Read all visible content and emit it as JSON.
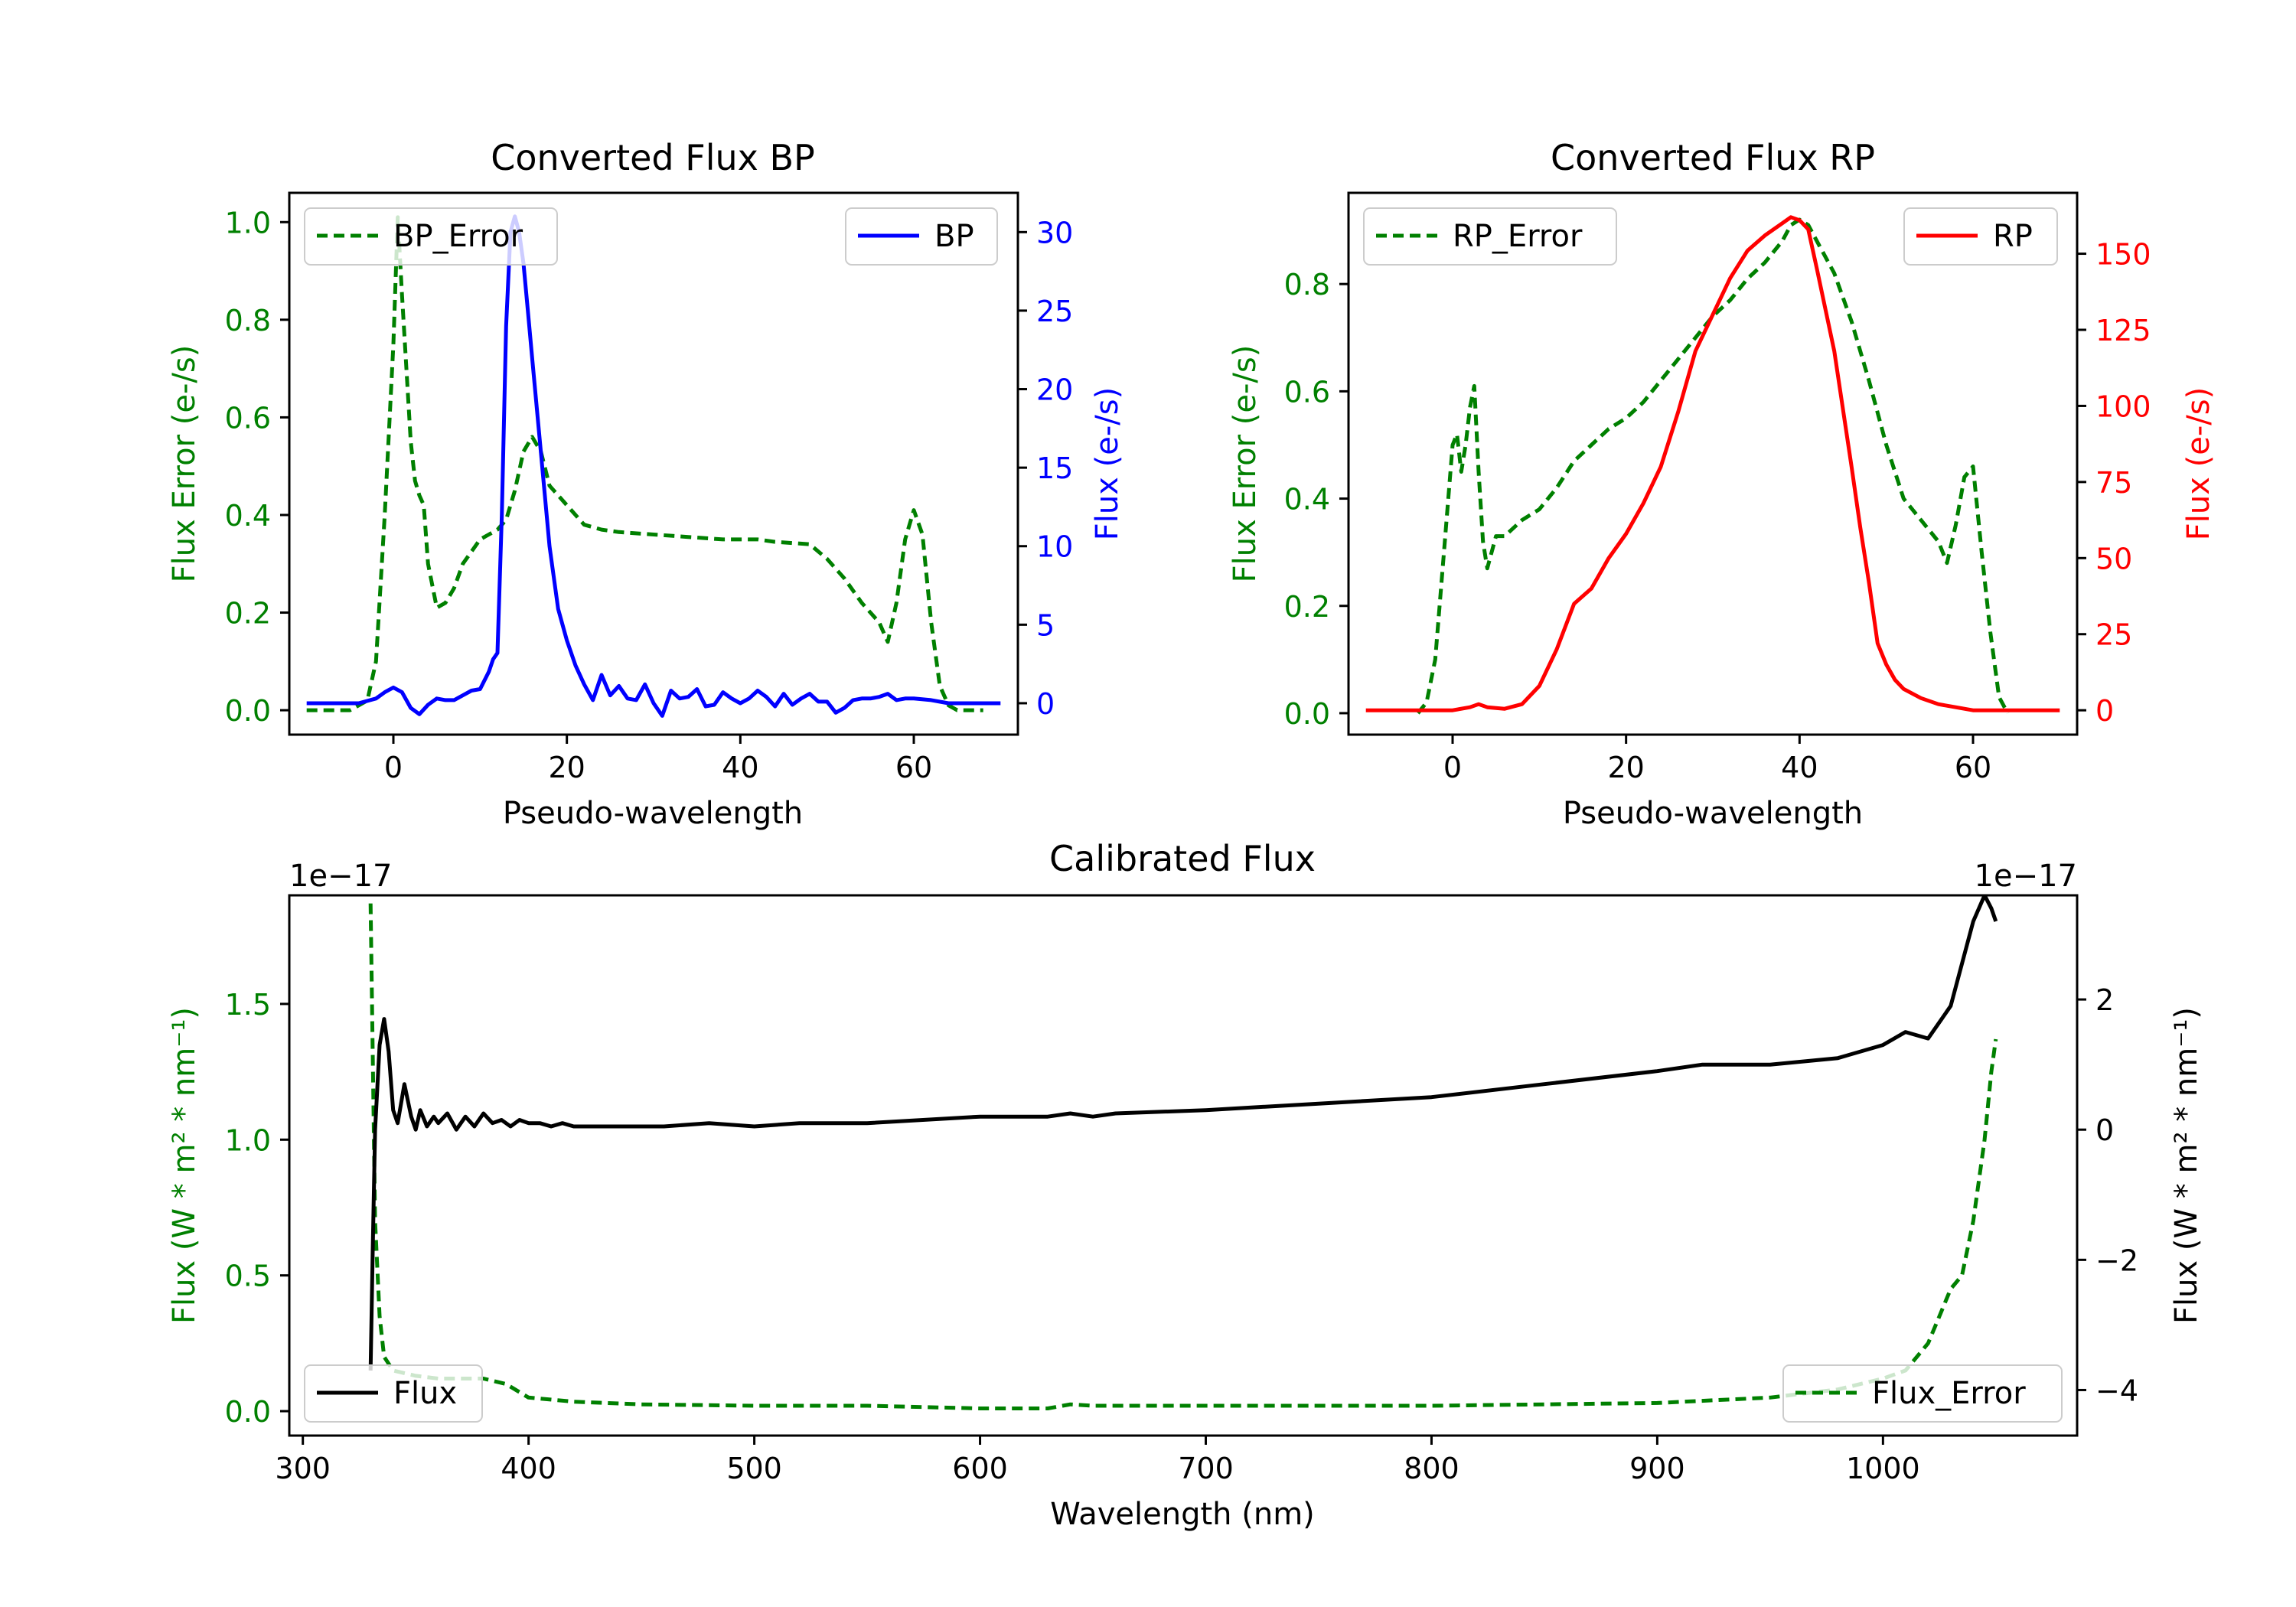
{
  "chart_data": [
    {
      "id": "bp",
      "type": "line",
      "title": "Converted Flux BP",
      "xlabel": "Pseudo-wavelength",
      "ylabel_left": "Flux Error (e-/s)",
      "ylabel_right": "Flux (e-/s)",
      "xlim": [
        -12,
        72
      ],
      "ylim_left": [
        -0.05,
        1.06
      ],
      "ylim_right": [
        -2,
        32.5
      ],
      "xticks": [
        0,
        20,
        40,
        60
      ],
      "yticks_left": [
        0.0,
        0.2,
        0.4,
        0.6,
        0.8,
        1.0
      ],
      "yticks_right": [
        0,
        5,
        10,
        15,
        20,
        25,
        30
      ],
      "colors": {
        "left": "#008000",
        "right": "#0000ff"
      },
      "series": [
        {
          "name": "BP_Error",
          "axis": "left",
          "style": "dashed",
          "color": "#008000",
          "x": [
            -10,
            -5,
            -3,
            -2,
            -1,
            0,
            0.5,
            1,
            2,
            2.5,
            3,
            3.5,
            4,
            5,
            6,
            7,
            8,
            10,
            12,
            13,
            14,
            15,
            16,
            17,
            18,
            20,
            22,
            24,
            26,
            30,
            34,
            38,
            42,
            44,
            48,
            50,
            52,
            54,
            55,
            56,
            57,
            58,
            59,
            60,
            61,
            62,
            63,
            64,
            65,
            68
          ],
          "y": [
            0,
            0,
            0.02,
            0.1,
            0.4,
            0.75,
            1.01,
            0.85,
            0.55,
            0.47,
            0.44,
            0.42,
            0.3,
            0.21,
            0.22,
            0.25,
            0.3,
            0.35,
            0.37,
            0.39,
            0.45,
            0.53,
            0.56,
            0.53,
            0.46,
            0.42,
            0.38,
            0.37,
            0.365,
            0.36,
            0.355,
            0.35,
            0.35,
            0.345,
            0.34,
            0.31,
            0.27,
            0.22,
            0.2,
            0.18,
            0.14,
            0.22,
            0.35,
            0.41,
            0.36,
            0.18,
            0.05,
            0.01,
            0,
            0
          ]
        },
        {
          "name": "BP",
          "axis": "right",
          "style": "solid",
          "color": "#0000ff",
          "x": [
            -10,
            -4,
            -2,
            -1,
            0,
            1,
            2,
            3,
            4,
            5,
            6,
            7,
            8,
            9,
            10,
            11,
            11.5,
            12,
            12.5,
            13,
            13.5,
            14,
            14.5,
            15,
            15.5,
            16,
            17,
            18,
            19,
            20,
            21,
            22,
            23,
            24,
            25,
            26,
            27,
            28,
            29,
            30,
            31,
            32,
            33,
            34,
            35,
            36,
            37,
            38,
            39,
            40,
            41,
            42,
            43,
            44,
            45,
            46,
            47,
            48,
            49,
            50,
            51,
            52,
            53,
            54,
            55,
            56,
            57,
            58,
            59,
            60,
            62,
            64,
            66,
            68,
            70
          ],
          "y": [
            0,
            0,
            0.3,
            0.7,
            1,
            0.7,
            -0.3,
            -0.7,
            -0.1,
            0.3,
            0.2,
            0.2,
            0.5,
            0.8,
            0.9,
            2,
            2.8,
            3.2,
            12,
            24,
            30,
            31,
            30,
            28,
            25,
            22,
            16,
            10,
            6,
            4,
            2.4,
            1.2,
            0.2,
            1.8,
            0.5,
            1.1,
            0.3,
            0.2,
            1.2,
            0,
            -0.8,
            0.8,
            0.3,
            0.4,
            0.9,
            -0.2,
            -0.1,
            0.7,
            0.3,
            0,
            0.3,
            0.8,
            0.4,
            -0.2,
            0.6,
            -0.1,
            0.3,
            0.6,
            0.1,
            0.1,
            -0.6,
            -0.3,
            0.2,
            0.3,
            0.3,
            0.4,
            0.6,
            0.2,
            0.3,
            0.3,
            0.2,
            0,
            0,
            0,
            0
          ]
        }
      ],
      "legends": {
        "left": "BP_Error",
        "right": "BP"
      }
    },
    {
      "id": "rp",
      "type": "line",
      "title": "Converted Flux RP",
      "xlabel": "Pseudo-wavelength",
      "ylabel_left": "Flux Error (e-/s)",
      "ylabel_right": "Flux (e-/s)",
      "xlim": [
        -12,
        72
      ],
      "ylim_left": [
        -0.04,
        0.97
      ],
      "ylim_right": [
        -8,
        170
      ],
      "xticks": [
        0,
        20,
        40,
        60
      ],
      "yticks_left": [
        0.0,
        0.2,
        0.4,
        0.6,
        0.8
      ],
      "yticks_right": [
        0,
        25,
        50,
        75,
        100,
        125,
        150
      ],
      "colors": {
        "left": "#008000",
        "right": "#ff0000"
      },
      "series": [
        {
          "name": "RP_Error",
          "axis": "left",
          "style": "dashed",
          "color": "#008000",
          "x": [
            -4,
            -3,
            -2,
            -1,
            0,
            0.5,
            1,
            1.5,
            2,
            2.5,
            3,
            3.5,
            4,
            5,
            6,
            8,
            10,
            12,
            14,
            16,
            18,
            20,
            22,
            24,
            26,
            28,
            30,
            32,
            34,
            36,
            38,
            39,
            40,
            41,
            42,
            44,
            46,
            48,
            50,
            52,
            54,
            56,
            57,
            58,
            59,
            60,
            61,
            62,
            63,
            64
          ],
          "y": [
            0,
            0.02,
            0.1,
            0.3,
            0.5,
            0.52,
            0.45,
            0.5,
            0.57,
            0.61,
            0.45,
            0.32,
            0.27,
            0.33,
            0.33,
            0.36,
            0.38,
            0.42,
            0.47,
            0.5,
            0.53,
            0.55,
            0.58,
            0.62,
            0.66,
            0.7,
            0.74,
            0.77,
            0.81,
            0.84,
            0.88,
            0.91,
            0.92,
            0.91,
            0.88,
            0.82,
            0.73,
            0.62,
            0.5,
            0.4,
            0.36,
            0.32,
            0.28,
            0.35,
            0.44,
            0.46,
            0.3,
            0.15,
            0.03,
            0
          ]
        },
        {
          "name": "RP",
          "axis": "right",
          "style": "solid",
          "color": "#ff0000",
          "x": [
            -10,
            -5,
            0,
            2,
            3,
            4,
            6,
            8,
            10,
            12,
            14,
            16,
            18,
            20,
            22,
            24,
            26,
            28,
            30,
            32,
            34,
            36,
            38,
            39,
            40,
            41,
            42,
            44,
            46,
            47,
            48,
            49,
            50,
            51,
            52,
            54,
            56,
            58,
            60,
            65,
            70
          ],
          "y": [
            0,
            0,
            0,
            1,
            2,
            1,
            0.5,
            2,
            8,
            20,
            35,
            40,
            50,
            58,
            68,
            80,
            98,
            118,
            130,
            142,
            151,
            156,
            160,
            162,
            161,
            158,
            145,
            118,
            80,
            60,
            42,
            22,
            15,
            10,
            7,
            4,
            2,
            1,
            0,
            0,
            0
          ]
        }
      ],
      "legends": {
        "left": "RP_Error",
        "right": "RP"
      }
    },
    {
      "id": "cal",
      "type": "line",
      "title": "Calibrated Flux",
      "xlabel": "Wavelength (nm)",
      "ylabel_left": "Flux (W * m² * nm⁻¹)",
      "ylabel_right": "Flux (W * m² * nm⁻¹)",
      "offset_left": "1e−17",
      "offset_right": "1e−17",
      "xlim": [
        294,
        1086
      ],
      "ylim_left": [
        -0.09,
        1.9
      ],
      "ylim_right": [
        -4.7,
        3.6
      ],
      "xticks": [
        300,
        400,
        500,
        600,
        700,
        800,
        900,
        1000
      ],
      "yticks_left": [
        0.0,
        0.5,
        1.0,
        1.5
      ],
      "yticks_right": [
        -4,
        -2,
        0,
        2
      ],
      "ytick_labels_right": [
        "−4",
        "−2",
        "0",
        "2"
      ],
      "colors": {
        "left": "#008000",
        "right": "#000000"
      },
      "series": [
        {
          "name": "Flux_Error",
          "axis": "left",
          "style": "dashed",
          "color": "#008000",
          "x": [
            330,
            331,
            332,
            334,
            336,
            340,
            350,
            360,
            380,
            390,
            400,
            420,
            450,
            500,
            550,
            600,
            630,
            640,
            650,
            700,
            800,
            900,
            950,
            980,
            1000,
            1010,
            1020,
            1025,
            1030,
            1035,
            1040,
            1045,
            1048,
            1050
          ],
          "y": [
            1.87,
            1.3,
            0.7,
            0.35,
            0.2,
            0.15,
            0.13,
            0.12,
            0.12,
            0.1,
            0.05,
            0.035,
            0.025,
            0.02,
            0.02,
            0.01,
            0.01,
            0.025,
            0.02,
            0.02,
            0.02,
            0.03,
            0.05,
            0.08,
            0.12,
            0.15,
            0.25,
            0.35,
            0.45,
            0.5,
            0.7,
            1.0,
            1.25,
            1.37
          ]
        },
        {
          "name": "Flux",
          "axis": "right",
          "style": "solid",
          "color": "#000000",
          "x": [
            330,
            331,
            332,
            334,
            336,
            338,
            340,
            342,
            345,
            348,
            350,
            352,
            355,
            358,
            360,
            364,
            368,
            372,
            376,
            380,
            384,
            388,
            392,
            396,
            400,
            405,
            410,
            415,
            420,
            430,
            440,
            450,
            460,
            480,
            500,
            520,
            550,
            600,
            630,
            640,
            650,
            660,
            700,
            750,
            800,
            850,
            900,
            920,
            950,
            980,
            1000,
            1010,
            1020,
            1030,
            1040,
            1045,
            1048,
            1050
          ],
          "y": [
            -3.7,
            -1.8,
            0,
            1.3,
            1.7,
            1.2,
            0.3,
            0.1,
            0.7,
            0.2,
            0,
            0.3,
            0.05,
            0.2,
            0.1,
            0.25,
            0.0,
            0.2,
            0.05,
            0.25,
            0.1,
            0.15,
            0.05,
            0.15,
            0.1,
            0.1,
            0.05,
            0.1,
            0.05,
            0.05,
            0.05,
            0.05,
            0.05,
            0.1,
            0.05,
            0.1,
            0.1,
            0.2,
            0.2,
            0.25,
            0.2,
            0.25,
            0.3,
            0.4,
            0.5,
            0.7,
            0.9,
            1.0,
            1.0,
            1.1,
            1.3,
            1.5,
            1.4,
            1.9,
            3.2,
            3.6,
            3.4,
            3.2
          ]
        }
      ],
      "legends": {
        "left": "Flux",
        "right": "Flux_Error"
      }
    }
  ]
}
